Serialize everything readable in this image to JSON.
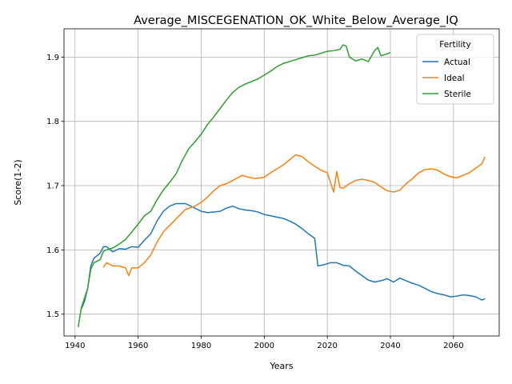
{
  "chart_data": {
    "type": "line",
    "title": "Average_MISCEGENATION_OK_White_Below_Average_IQ",
    "xlabel": "Years",
    "ylabel": "Score(1-2)",
    "xlim": [
      1936.5,
      2074.5
    ],
    "ylim": [
      1.466,
      1.944
    ],
    "xticks": [
      1940,
      1960,
      1980,
      2000,
      2020,
      2040,
      2060
    ],
    "yticks": [
      1.5,
      1.6,
      1.7,
      1.8,
      1.9
    ],
    "grid": true,
    "legend": {
      "title": "Fertility",
      "placement": "top-right"
    },
    "series": [
      {
        "name": "Actual",
        "color": "#1f77b4",
        "x": [
          1942,
          1943,
          1944,
          1945,
          1946,
          1948,
          1949,
          1950,
          1952,
          1954,
          1956,
          1958,
          1960,
          1962,
          1964,
          1966,
          1968,
          1970,
          1972,
          1975,
          1978,
          1980,
          1982,
          1984,
          1986,
          1988,
          1990,
          1992,
          1994,
          1996,
          1998,
          2000,
          2002,
          2004,
          2006,
          2008,
          2010,
          2012,
          2014,
          2016,
          2017,
          2019,
          2021,
          2023,
          2025,
          2027,
          2029,
          2031,
          2033,
          2035,
          2037,
          2039,
          2041,
          2043,
          2045,
          2047,
          2049,
          2051,
          2053,
          2055,
          2057,
          2059,
          2061,
          2063,
          2065,
          2067,
          2069,
          2070
        ],
        "y": [
          1.508,
          1.52,
          1.54,
          1.575,
          1.587,
          1.595,
          1.605,
          1.605,
          1.597,
          1.602,
          1.601,
          1.605,
          1.604,
          1.615,
          1.625,
          1.645,
          1.66,
          1.668,
          1.672,
          1.672,
          1.665,
          1.66,
          1.658,
          1.659,
          1.66,
          1.665,
          1.668,
          1.664,
          1.662,
          1.661,
          1.659,
          1.655,
          1.653,
          1.651,
          1.649,
          1.645,
          1.64,
          1.633,
          1.625,
          1.618,
          1.575,
          1.577,
          1.58,
          1.58,
          1.576,
          1.575,
          1.567,
          1.56,
          1.553,
          1.55,
          1.552,
          1.555,
          1.55,
          1.556,
          1.552,
          1.548,
          1.545,
          1.54,
          1.535,
          1.532,
          1.53,
          1.527,
          1.528,
          1.53,
          1.529,
          1.527,
          1.522,
          1.524
        ]
      },
      {
        "name": "Ideal",
        "color": "#ff7f0e",
        "x": [
          1949,
          1950,
          1952,
          1954,
          1956,
          1957,
          1958,
          1960,
          1962,
          1964,
          1966,
          1968,
          1970,
          1972,
          1975,
          1978,
          1980,
          1982,
          1984,
          1986,
          1988,
          1990,
          1993,
          1995,
          1997,
          2000,
          2002,
          2004,
          2006,
          2008,
          2010,
          2012,
          2014,
          2016,
          2018,
          2020,
          2022,
          2023,
          2024,
          2025,
          2027,
          2029,
          2031,
          2033,
          2035,
          2037,
          2039,
          2041,
          2043,
          2045,
          2047,
          2049,
          2051,
          2053,
          2055,
          2057,
          2059,
          2061,
          2063,
          2065,
          2067,
          2069,
          2070
        ],
        "y": [
          1.573,
          1.58,
          1.575,
          1.575,
          1.572,
          1.56,
          1.572,
          1.572,
          1.58,
          1.592,
          1.612,
          1.628,
          1.638,
          1.648,
          1.663,
          1.668,
          1.674,
          1.682,
          1.692,
          1.7,
          1.703,
          1.708,
          1.716,
          1.713,
          1.711,
          1.713,
          1.72,
          1.726,
          1.732,
          1.74,
          1.748,
          1.745,
          1.737,
          1.73,
          1.724,
          1.72,
          1.69,
          1.722,
          1.697,
          1.696,
          1.703,
          1.708,
          1.71,
          1.708,
          1.705,
          1.698,
          1.692,
          1.69,
          1.693,
          1.703,
          1.711,
          1.72,
          1.725,
          1.726,
          1.724,
          1.718,
          1.714,
          1.712,
          1.716,
          1.72,
          1.727,
          1.734,
          1.745
        ]
      },
      {
        "name": "Sterile",
        "color": "#2ca02c",
        "x": [
          1941,
          1942,
          1943,
          1944,
          1945,
          1946,
          1948,
          1949,
          1950,
          1952,
          1954,
          1956,
          1958,
          1960,
          1962,
          1964,
          1966,
          1968,
          1970,
          1972,
          1974,
          1976,
          1978,
          1980,
          1982,
          1984,
          1986,
          1988,
          1990,
          1992,
          1994,
          1996,
          1998,
          2000,
          2002,
          2004,
          2006,
          2008,
          2010,
          2012,
          2014,
          2016,
          2018,
          2020,
          2022,
          2024,
          2025,
          2026,
          2027,
          2029,
          2031,
          2033,
          2035,
          2036,
          2037,
          2039,
          2040
        ],
        "y": [
          1.48,
          1.51,
          1.525,
          1.54,
          1.57,
          1.58,
          1.585,
          1.598,
          1.6,
          1.603,
          1.609,
          1.616,
          1.628,
          1.64,
          1.653,
          1.66,
          1.678,
          1.693,
          1.705,
          1.718,
          1.739,
          1.757,
          1.768,
          1.78,
          1.795,
          1.807,
          1.82,
          1.833,
          1.845,
          1.853,
          1.858,
          1.862,
          1.866,
          1.872,
          1.878,
          1.885,
          1.89,
          1.893,
          1.896,
          1.899,
          1.902,
          1.903,
          1.906,
          1.909,
          1.91,
          1.912,
          1.919,
          1.917,
          1.9,
          1.894,
          1.897,
          1.893,
          1.91,
          1.915,
          1.902,
          1.905,
          1.907
        ]
      }
    ]
  }
}
